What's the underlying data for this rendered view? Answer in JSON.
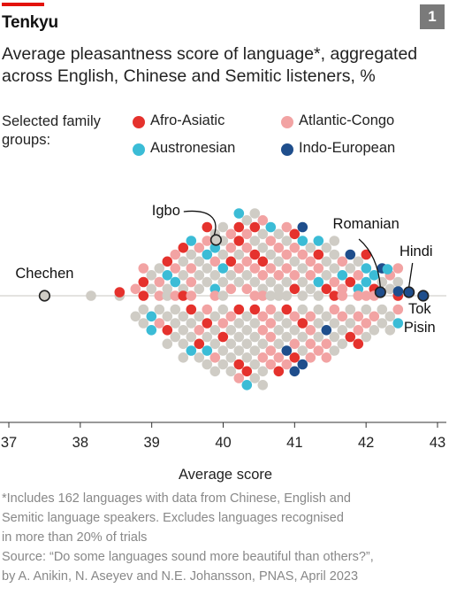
{
  "header": {
    "kicker": "Tenkyu",
    "badge": "1",
    "title_line1": "Average pleasantness score of language*, aggregated",
    "title_line2": "across English, Chinese and Semitic listeners, %"
  },
  "legend": {
    "heading_line1": "Selected family",
    "heading_line2": "groups:",
    "items": [
      {
        "label": "Afro-Asiatic",
        "color": "#e5322d"
      },
      {
        "label": "Atlantic-Congo",
        "color": "#f2a3a3"
      },
      {
        "label": "Austronesian",
        "color": "#3bbcd6"
      },
      {
        "label": "Indo-European",
        "color": "#1f4e8c"
      }
    ],
    "other_color": "#cfccc5"
  },
  "chart_data": {
    "type": "scatter",
    "xlabel": "Average score",
    "xlim": [
      37,
      43
    ],
    "xticks": [
      37,
      38,
      39,
      40,
      41,
      42,
      43
    ],
    "grid": false,
    "highlighted": [
      {
        "name": "Chechen",
        "x": 37.5
      },
      {
        "name": "Igbo",
        "x": 39.9
      },
      {
        "name": "Romanian",
        "x": 42.2
      },
      {
        "name": "Hindi",
        "x": 42.6
      },
      {
        "name": "Tok Pisin",
        "x": 42.8
      }
    ]
  },
  "footnote": {
    "line1": "*Includes 162 languages with data from Chinese, English and",
    "line2": "Semitic language speakers. Excludes languages recognised",
    "line3": "in more than 20% of trials",
    "line4": "Source: “Do some languages sound more beautiful than others?”,",
    "line5": "by A. Anikin, N. Aseyev and N.E. Johansson, PNAS, April 2023"
  }
}
